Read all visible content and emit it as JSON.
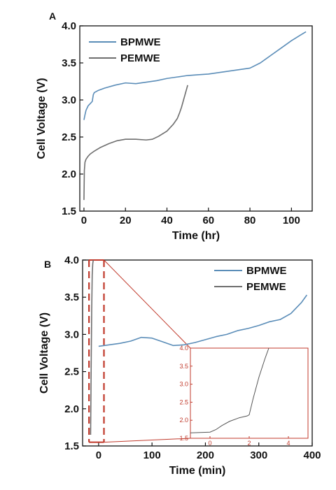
{
  "chart_data": [
    {
      "panel": "A",
      "type": "line",
      "xlabel": "Time (hr)",
      "ylabel": "Cell Voltage (V)",
      "xlim": [
        -2,
        110
      ],
      "ylim": [
        1.5,
        4.0
      ],
      "xticks": [
        "0",
        "20",
        "40",
        "60",
        "80",
        "100"
      ],
      "yticks": [
        "1.5",
        "2.0",
        "2.5",
        "3.0",
        "3.5",
        "4.0"
      ],
      "legend_position": "top-left",
      "series": [
        {
          "name": "BPMWE",
          "color": "#5b8db8",
          "x": [
            0,
            0.5,
            1,
            2,
            3,
            4,
            4.5,
            5,
            7,
            10,
            15,
            20,
            25,
            30,
            35,
            40,
            45,
            50,
            55,
            60,
            65,
            70,
            75,
            80,
            85,
            90,
            95,
            100,
            104,
            107
          ],
          "y": [
            2.73,
            2.8,
            2.86,
            2.92,
            2.95,
            2.98,
            3.07,
            3.1,
            3.13,
            3.16,
            3.2,
            3.23,
            3.22,
            3.24,
            3.26,
            3.29,
            3.31,
            3.33,
            3.34,
            3.35,
            3.37,
            3.39,
            3.41,
            3.43,
            3.5,
            3.6,
            3.7,
            3.8,
            3.87,
            3.92
          ]
        },
        {
          "name": "PEMWE",
          "color": "#6e6e6e",
          "x": [
            0,
            0.2,
            0.5,
            1,
            2,
            3,
            5,
            8,
            12,
            16,
            20,
            25,
            30,
            33,
            36,
            40,
            43,
            45,
            46,
            47,
            48,
            49,
            50
          ],
          "y": [
            1.65,
            2.05,
            2.16,
            2.2,
            2.24,
            2.27,
            2.31,
            2.36,
            2.41,
            2.45,
            2.47,
            2.47,
            2.46,
            2.47,
            2.51,
            2.58,
            2.67,
            2.75,
            2.82,
            2.9,
            3.0,
            3.1,
            3.2
          ]
        }
      ]
    },
    {
      "panel": "B",
      "type": "line",
      "xlabel": "Time (min)",
      "ylabel": "Cell Voltage (V)",
      "xlim": [
        -30,
        400
      ],
      "ylim": [
        1.5,
        4.0
      ],
      "xticks": [
        "0",
        "100",
        "200",
        "300",
        "400"
      ],
      "yticks": [
        "1.5",
        "2.0",
        "2.5",
        "3.0",
        "3.5",
        "4.0"
      ],
      "legend_position": "top-right",
      "series": [
        {
          "name": "BPMWE",
          "color": "#5b8db8",
          "x": [
            0,
            20,
            40,
            60,
            80,
            100,
            120,
            140,
            160,
            180,
            200,
            220,
            240,
            260,
            280,
            300,
            320,
            340,
            360,
            380,
            390
          ],
          "y": [
            2.84,
            2.86,
            2.88,
            2.91,
            2.96,
            2.95,
            2.9,
            2.85,
            2.86,
            2.89,
            2.93,
            2.97,
            3.0,
            3.05,
            3.08,
            3.12,
            3.17,
            3.2,
            3.28,
            3.43,
            3.53
          ]
        },
        {
          "name": "PEMWE",
          "color": "#6e6e6e",
          "x": [
            -15,
            -14,
            -13,
            -12,
            -11,
            -10
          ],
          "y": [
            1.65,
            2.5,
            3.3,
            3.8,
            3.95,
            4.0
          ]
        }
      ],
      "inset": {
        "xlim": [
          -1,
          5
        ],
        "ylim": [
          1.5,
          4.0
        ],
        "xticks": [
          "0",
          "2",
          "4"
        ],
        "yticks": [
          "1.5",
          "2.0",
          "2.5",
          "3.0",
          "3.5",
          "4.0"
        ],
        "series": {
          "color": "#555555",
          "x": [
            -1,
            0,
            0.3,
            0.6,
            1.0,
            1.5,
            1.9,
            2.0,
            2.2,
            2.5,
            2.8,
            3.0
          ],
          "y": [
            1.65,
            1.67,
            1.74,
            1.85,
            1.97,
            2.07,
            2.12,
            2.15,
            2.6,
            3.2,
            3.7,
            4.0
          ]
        }
      }
    }
  ]
}
